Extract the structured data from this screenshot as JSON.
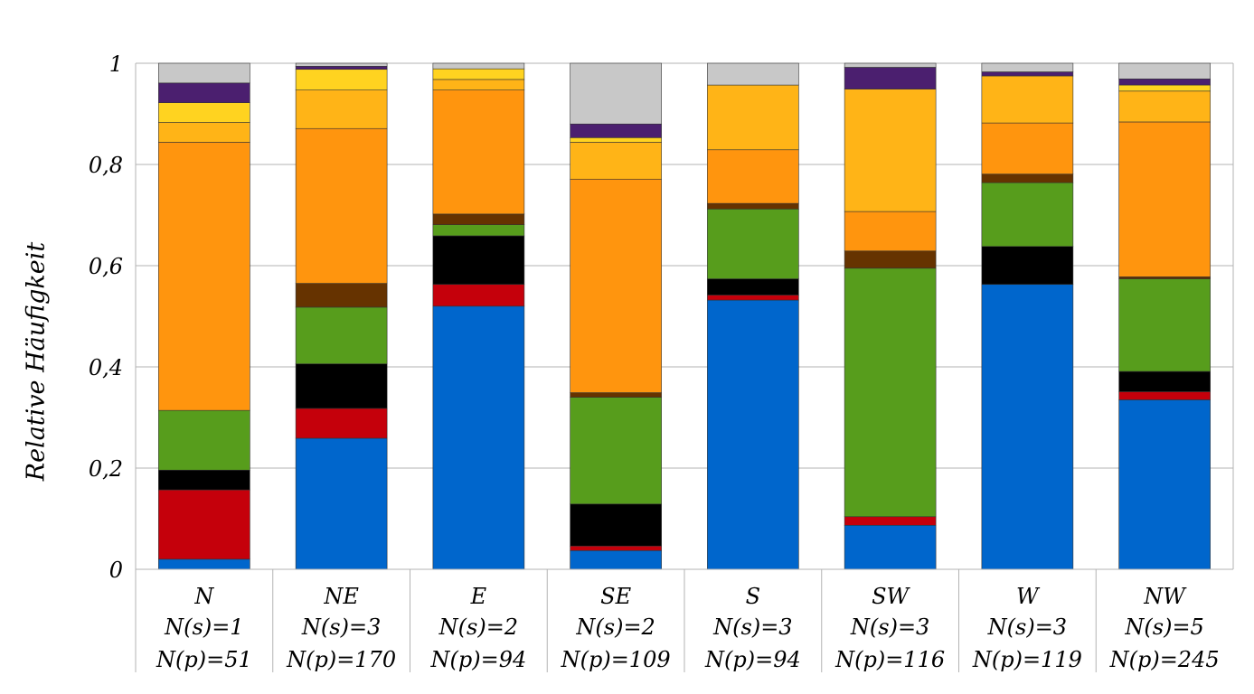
{
  "chart_data": {
    "type": "bar",
    "stacked": true,
    "xlabel": "",
    "ylabel": "Relative Häufigkeit",
    "ylim": [
      0,
      1
    ],
    "yticks": [
      "0",
      "0,2",
      "0,4",
      "0,6",
      "0,8",
      "1"
    ],
    "grid": true,
    "categories": [
      {
        "name": "N",
        "ns": "N(s)=1",
        "np": "N(p)=51"
      },
      {
        "name": "NE",
        "ns": "N(s)=3",
        "np": "N(p)=170"
      },
      {
        "name": "E",
        "ns": "N(s)=2",
        "np": "N(p)=94"
      },
      {
        "name": "SE",
        "ns": "N(s)=2",
        "np": "N(p)=109"
      },
      {
        "name": "S",
        "ns": "N(s)=3",
        "np": "N(p)=94"
      },
      {
        "name": "SW",
        "ns": "N(s)=3",
        "np": "N(p)=116"
      },
      {
        "name": "W",
        "ns": "N(s)=3",
        "np": "N(p)=119"
      },
      {
        "name": "NW",
        "ns": "N(s)=5",
        "np": "N(p)=245"
      }
    ],
    "series": [
      {
        "color": "#0066cc",
        "values": [
          0.02,
          0.259,
          0.52,
          0.037,
          0.532,
          0.087,
          0.563,
          0.335
        ]
      },
      {
        "color": "#c5000b",
        "values": [
          0.137,
          0.059,
          0.043,
          0.009,
          0.01,
          0.017,
          0.0,
          0.016
        ]
      },
      {
        "color": "#000000",
        "values": [
          0.039,
          0.088,
          0.096,
          0.083,
          0.032,
          0.0,
          0.075,
          0.04
        ]
      },
      {
        "color": "#579d1c",
        "values": [
          0.118,
          0.112,
          0.022,
          0.211,
          0.138,
          0.491,
          0.126,
          0.183
        ]
      },
      {
        "color": "#663300",
        "values": [
          0.0,
          0.047,
          0.021,
          0.009,
          0.011,
          0.034,
          0.017,
          0.004
        ]
      },
      {
        "color": "#ff950e",
        "values": [
          0.53,
          0.306,
          0.245,
          0.422,
          0.106,
          0.078,
          0.101,
          0.306
        ]
      },
      {
        "color": "#ffb417",
        "values": [
          0.039,
          0.076,
          0.021,
          0.073,
          0.128,
          0.242,
          0.093,
          0.061
        ]
      },
      {
        "color": "#ffd320",
        "values": [
          0.039,
          0.041,
          0.021,
          0.009,
          0.0,
          0.0,
          0.0,
          0.012
        ]
      },
      {
        "color": "#4b1f6f",
        "values": [
          0.039,
          0.006,
          0.0,
          0.027,
          0.0,
          0.043,
          0.008,
          0.012
        ]
      },
      {
        "color": "#c8c8c8",
        "values": [
          0.039,
          0.006,
          0.011,
          0.12,
          0.043,
          0.008,
          0.017,
          0.031
        ]
      }
    ]
  }
}
